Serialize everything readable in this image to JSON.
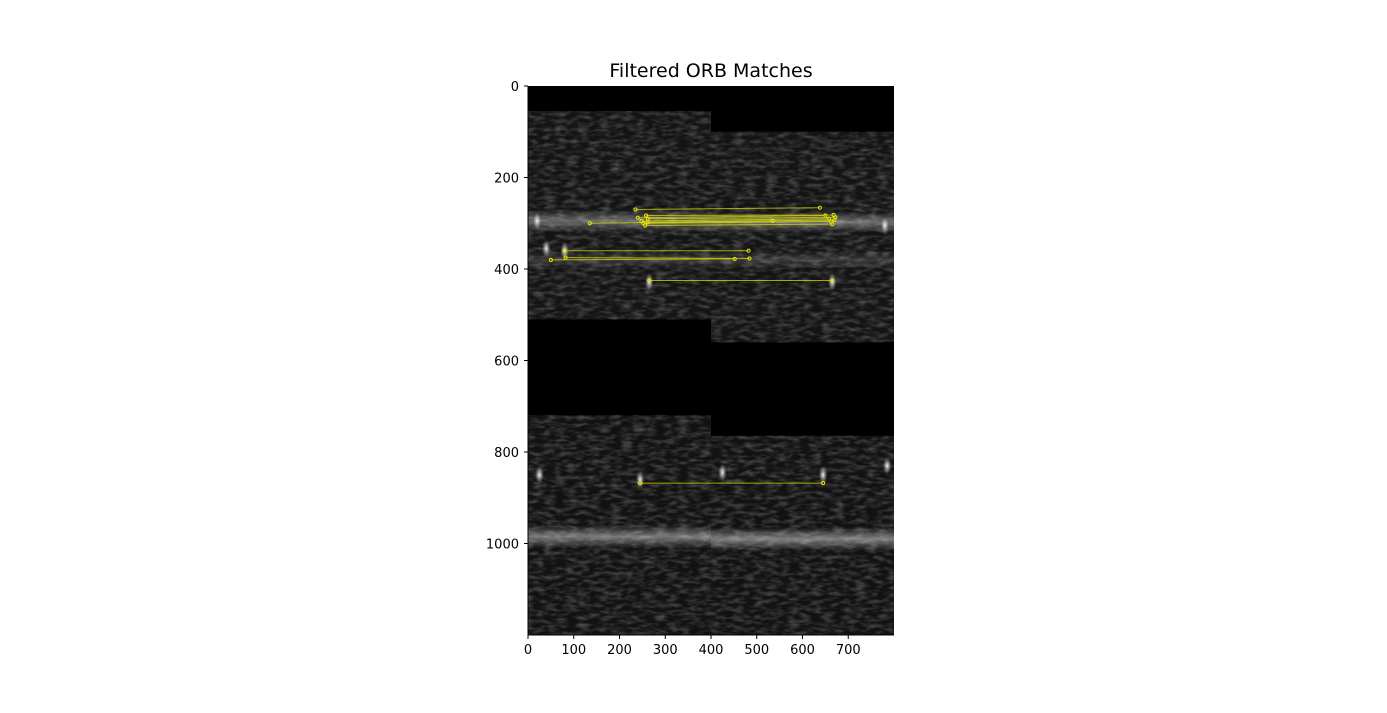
{
  "chart_data": {
    "type": "image",
    "title": "Filtered ORB Matches",
    "xlabel": "",
    "ylabel": "",
    "xlim": [
      0,
      800
    ],
    "ylim": [
      1200,
      0
    ],
    "xticks": [
      0,
      100,
      200,
      300,
      400,
      500,
      600,
      700
    ],
    "yticks": [
      0,
      200,
      400,
      600,
      800,
      1000
    ],
    "grid": false,
    "colors": {
      "match_line": "#d8d800",
      "keypoint": "#e8e800",
      "background": "#000000"
    },
    "matches": [
      {
        "x1": 235,
        "y1": 270,
        "x2": 638,
        "y2": 266
      },
      {
        "x1": 240,
        "y1": 288,
        "x2": 650,
        "y2": 283
      },
      {
        "x1": 258,
        "y1": 283,
        "x2": 668,
        "y2": 282
      },
      {
        "x1": 262,
        "y1": 290,
        "x2": 672,
        "y2": 287
      },
      {
        "x1": 248,
        "y1": 295,
        "x2": 658,
        "y2": 290
      },
      {
        "x1": 252,
        "y1": 300,
        "x2": 662,
        "y2": 296
      },
      {
        "x1": 256,
        "y1": 305,
        "x2": 665,
        "y2": 302
      },
      {
        "x1": 135,
        "y1": 300,
        "x2": 535,
        "y2": 295
      },
      {
        "x1": 262,
        "y1": 298,
        "x2": 670,
        "y2": 293
      },
      {
        "x1": 80,
        "y1": 360,
        "x2": 482,
        "y2": 360
      },
      {
        "x1": 50,
        "y1": 380,
        "x2": 452,
        "y2": 378
      },
      {
        "x1": 82,
        "y1": 375,
        "x2": 484,
        "y2": 377
      },
      {
        "x1": 265,
        "y1": 425,
        "x2": 665,
        "y2": 425
      },
      {
        "x1": 245,
        "y1": 868,
        "x2": 645,
        "y2": 868
      }
    ],
    "bright_spots": [
      {
        "x": 40,
        "y": 355
      },
      {
        "x": 80,
        "y": 360
      },
      {
        "x": 265,
        "y": 428
      },
      {
        "x": 665,
        "y": 428
      },
      {
        "x": 25,
        "y": 850
      },
      {
        "x": 245,
        "y": 860
      },
      {
        "x": 425,
        "y": 845
      },
      {
        "x": 645,
        "y": 850
      },
      {
        "x": 785,
        "y": 830
      },
      {
        "x": 20,
        "y": 295
      },
      {
        "x": 780,
        "y": 305
      }
    ],
    "bands": [
      {
        "x0": 0,
        "x1": 400,
        "y0": 270,
        "y1": 320,
        "level": 0.35
      },
      {
        "x0": 400,
        "x1": 800,
        "y0": 275,
        "y1": 320,
        "level": 0.38
      },
      {
        "x0": 0,
        "x1": 400,
        "y0": 960,
        "y1": 1010,
        "level": 0.42
      },
      {
        "x0": 400,
        "x1": 800,
        "y0": 965,
        "y1": 1015,
        "level": 0.45
      },
      {
        "x0": 0,
        "x1": 400,
        "y0": 360,
        "y1": 400,
        "level": 0.15
      },
      {
        "x0": 400,
        "x1": 800,
        "y0": 360,
        "y1": 400,
        "level": 0.15
      }
    ],
    "tiles": [
      {
        "x0": 0,
        "x1": 400,
        "y0": 55,
        "y1": 510,
        "level": 0.08
      },
      {
        "x0": 400,
        "x1": 800,
        "y0": 100,
        "y1": 560,
        "level": 0.08
      },
      {
        "x0": 0,
        "x1": 400,
        "y0": 720,
        "y1": 1200,
        "level": 0.07
      },
      {
        "x0": 400,
        "x1": 800,
        "y0": 765,
        "y1": 1200,
        "level": 0.07
      }
    ]
  }
}
